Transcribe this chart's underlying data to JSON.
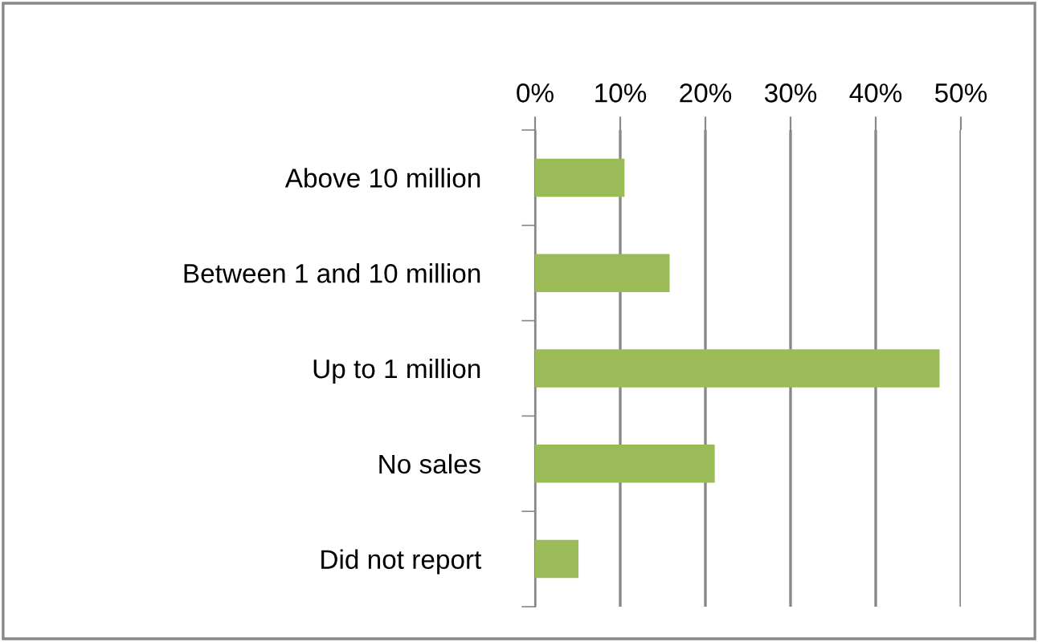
{
  "chart_data": {
    "type": "bar",
    "orientation": "horizontal",
    "categories": [
      "Above 10 million",
      "Between 1 and 10 million",
      "Up to 1 million",
      "No sales",
      "Did not report"
    ],
    "values": [
      10.5,
      15.8,
      47.5,
      21.1,
      5.1
    ],
    "color": "#9bbb59",
    "xlim": [
      0,
      50
    ],
    "xticks": [
      {
        "value": 0,
        "label": "0%"
      },
      {
        "value": 10,
        "label": "10%"
      },
      {
        "value": 20,
        "label": "20%"
      },
      {
        "value": 30,
        "label": "30%"
      },
      {
        "value": 40,
        "label": "40%"
      },
      {
        "value": 50,
        "label": "50%"
      }
    ],
    "grid": "x",
    "legend": false
  }
}
